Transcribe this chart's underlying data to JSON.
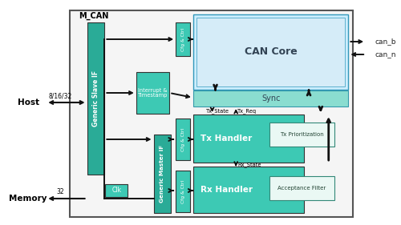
{
  "teal_dark": "#2aab97",
  "teal_medium": "#3dc9b4",
  "teal_light": "#8addd0",
  "blue_light": "#b8e4f5",
  "blue_mid": "#a0d8ef",
  "blue_lighter": "#cceeff",
  "title_mcan": "M_CAN",
  "label_host": "Host",
  "label_memory": "Memory",
  "label_816_32": "8/16/32",
  "label_32": "32",
  "label_can_b": "can_b",
  "label_can_n": "can_n",
  "label_clk": "Clk",
  "label_generic_slave": "Generic Slave IF",
  "label_generic_master": "Generic Master IF",
  "label_cfg_ctrl": "Cfg & Ctrl",
  "label_interrupt": "Interrupt &\nTimestamp",
  "label_can_core": "CAN Core",
  "label_sync": "Sync",
  "label_tx_handler": "Tx Handler",
  "label_rx_handler": "Rx Handler",
  "label_tx_prioritization": "Tx Prioritization",
  "label_acceptance_filter": "Acceptance Filter",
  "label_tx_state": "Tx_State",
  "label_tx_req": "Tx_Req",
  "label_rx_state": "Rx_State"
}
